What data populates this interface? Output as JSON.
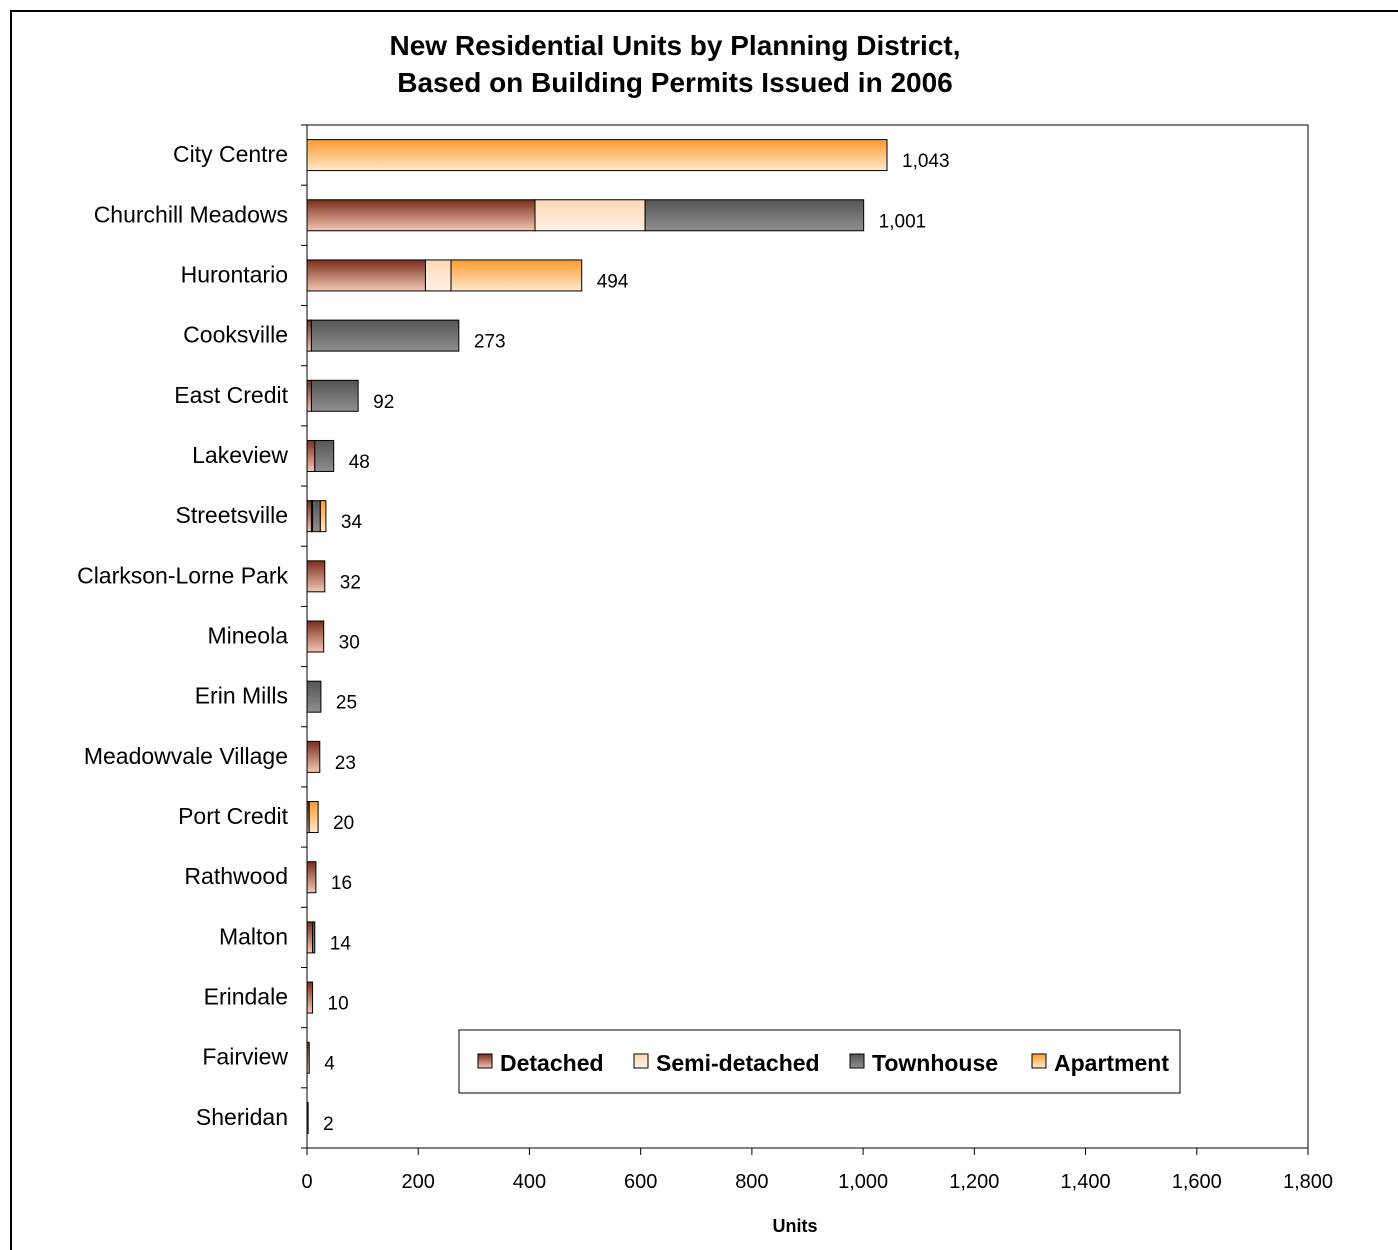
{
  "chart_data": {
    "type": "bar",
    "orientation": "horizontal",
    "stacked": true,
    "title": [
      "New Residential Units by Planning District,",
      "Based on Building Permits Issued in 2006"
    ],
    "xlabel": "Units",
    "ylabel": "",
    "xlim": [
      0,
      1800
    ],
    "xticks": [
      "0",
      "200",
      "400",
      "600",
      "800",
      "1,000",
      "1,200",
      "1,400",
      "1,600",
      "1,800"
    ],
    "legend_position": "bottom-right-inside",
    "categories": [
      "City Centre",
      "Churchill Meadows",
      "Hurontario",
      "Cooksville",
      "East Credit",
      "Lakeview",
      "Streetsville",
      "Clarkson-Lorne Park",
      "Mineola",
      "Erin Mills",
      "Meadowvale Village",
      "Port Credit",
      "Rathwood",
      "Malton",
      "Erindale",
      "Fairview",
      "Sheridan"
    ],
    "series": [
      {
        "name": "Detached",
        "color_dark": "#7b2c1a",
        "color_light": "#f2c8b4",
        "values": [
          0,
          410,
          213,
          8,
          8,
          14,
          8,
          32,
          30,
          0,
          23,
          4,
          16,
          10,
          10,
          4,
          2
        ]
      },
      {
        "name": "Semi-detached",
        "color_dark": "#fcd8b6",
        "color_light": "#fff1e6",
        "values": [
          0,
          198,
          46,
          0,
          0,
          0,
          2,
          0,
          0,
          0,
          0,
          0,
          0,
          0,
          0,
          0,
          0
        ]
      },
      {
        "name": "Townhouse",
        "color_dark": "#555555",
        "color_light": "#8f8f8f",
        "values": [
          0,
          393,
          0,
          265,
          84,
          34,
          14,
          0,
          0,
          25,
          0,
          0,
          0,
          4,
          0,
          0,
          0
        ]
      },
      {
        "name": "Apartment",
        "color_dark": "#ff9a2e",
        "color_light": "#ffe9cc",
        "values": [
          1043,
          0,
          235,
          0,
          0,
          0,
          10,
          0,
          0,
          0,
          0,
          16,
          0,
          0,
          0,
          0,
          0
        ]
      }
    ],
    "totals": [
      "1,043",
      "1,001",
      "494",
      "273",
      "92",
      "48",
      "34",
      "32",
      "30",
      "25",
      "23",
      "20",
      "16",
      "14",
      "10",
      "4",
      "2"
    ]
  }
}
